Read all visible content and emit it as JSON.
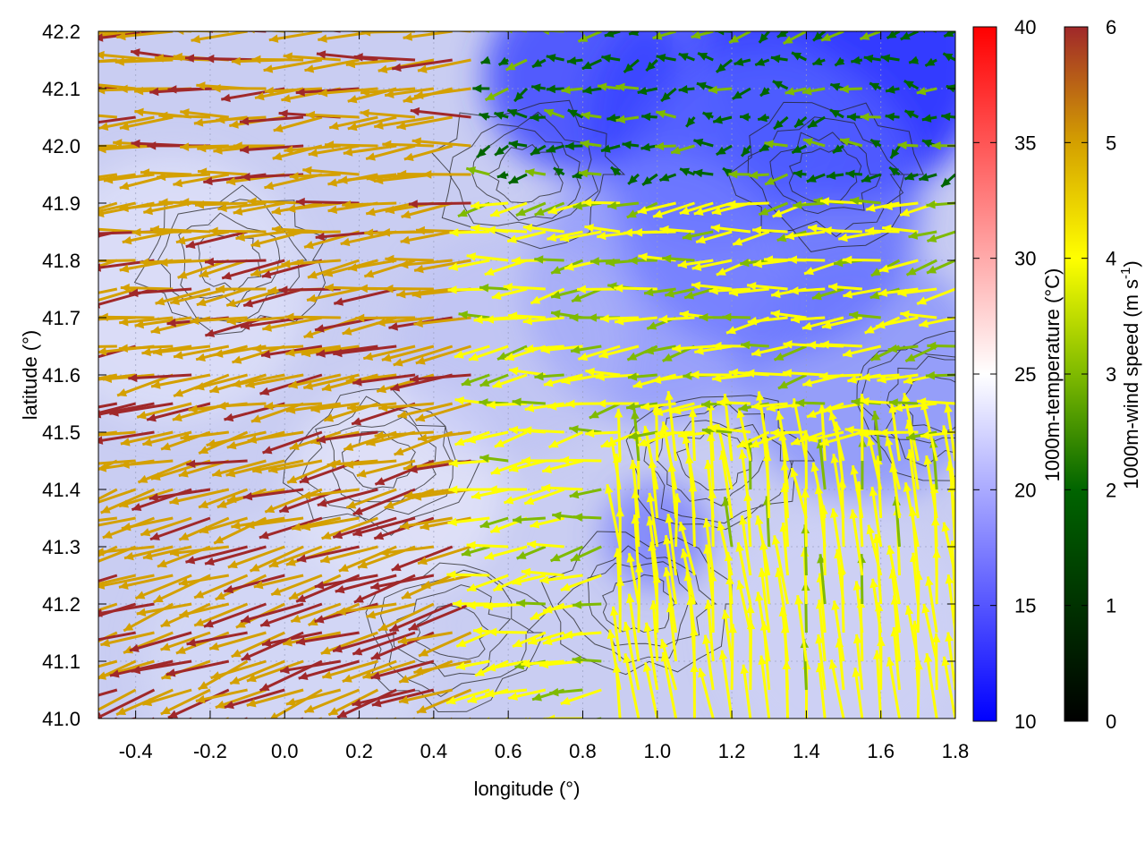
{
  "chart_data": {
    "type": "vector-field",
    "title": "",
    "xlabel": "longitude (°)",
    "ylabel": "latitude (°)",
    "xlim": [
      -0.5,
      1.8
    ],
    "ylim": [
      41.0,
      42.2
    ],
    "x_ticks": [
      -0.4,
      -0.2,
      0.0,
      0.2,
      0.4,
      0.6,
      0.8,
      1.0,
      1.2,
      1.4,
      1.6,
      1.8
    ],
    "x_tick_labels": [
      "-0.4",
      "-0.2",
      "0.0",
      "0.2",
      "0.4",
      "0.6",
      "0.8",
      "1.0",
      "1.2",
      "1.4",
      "1.6",
      "1.8"
    ],
    "y_ticks": [
      41.0,
      41.1,
      41.2,
      41.3,
      41.4,
      41.5,
      41.6,
      41.7,
      41.8,
      41.9,
      42.0,
      42.1,
      42.2
    ],
    "y_tick_labels": [
      "41.0",
      "41.1",
      "41.2",
      "41.3",
      "41.4",
      "41.5",
      "41.6",
      "41.7",
      "41.8",
      "41.9",
      "42.0",
      "42.1",
      "42.2"
    ],
    "grid": true,
    "background_field": {
      "label": "1000m-temperature (°C)",
      "range": [
        10,
        40
      ],
      "ticks": [
        10,
        15,
        20,
        25,
        30,
        35,
        40
      ],
      "tick_labels": [
        "10",
        "15",
        "20",
        "25",
        "30",
        "35",
        "40"
      ],
      "colormap": [
        "#0000ff",
        "#ffffff",
        "#ff0000"
      ]
    },
    "vector_field": {
      "label_main": "1000m-wind speed (m s",
      "label_sup": "-1",
      "label_end": ")",
      "range": [
        0,
        6
      ],
      "ticks": [
        0,
        1,
        2,
        3,
        4,
        5,
        6
      ],
      "tick_labels": [
        "0",
        "1",
        "2",
        "3",
        "4",
        "5",
        "6"
      ],
      "colormap": [
        "#000000",
        "#006400",
        "#7fba00",
        "#ffff00",
        "#d4a000",
        "#a0282a"
      ],
      "sample_grid": {
        "lon_start": -0.5,
        "lon_step": 0.05,
        "lat_start": 41.0,
        "lat_step": 0.05
      }
    },
    "contours": "terrain contour lines (black)"
  }
}
